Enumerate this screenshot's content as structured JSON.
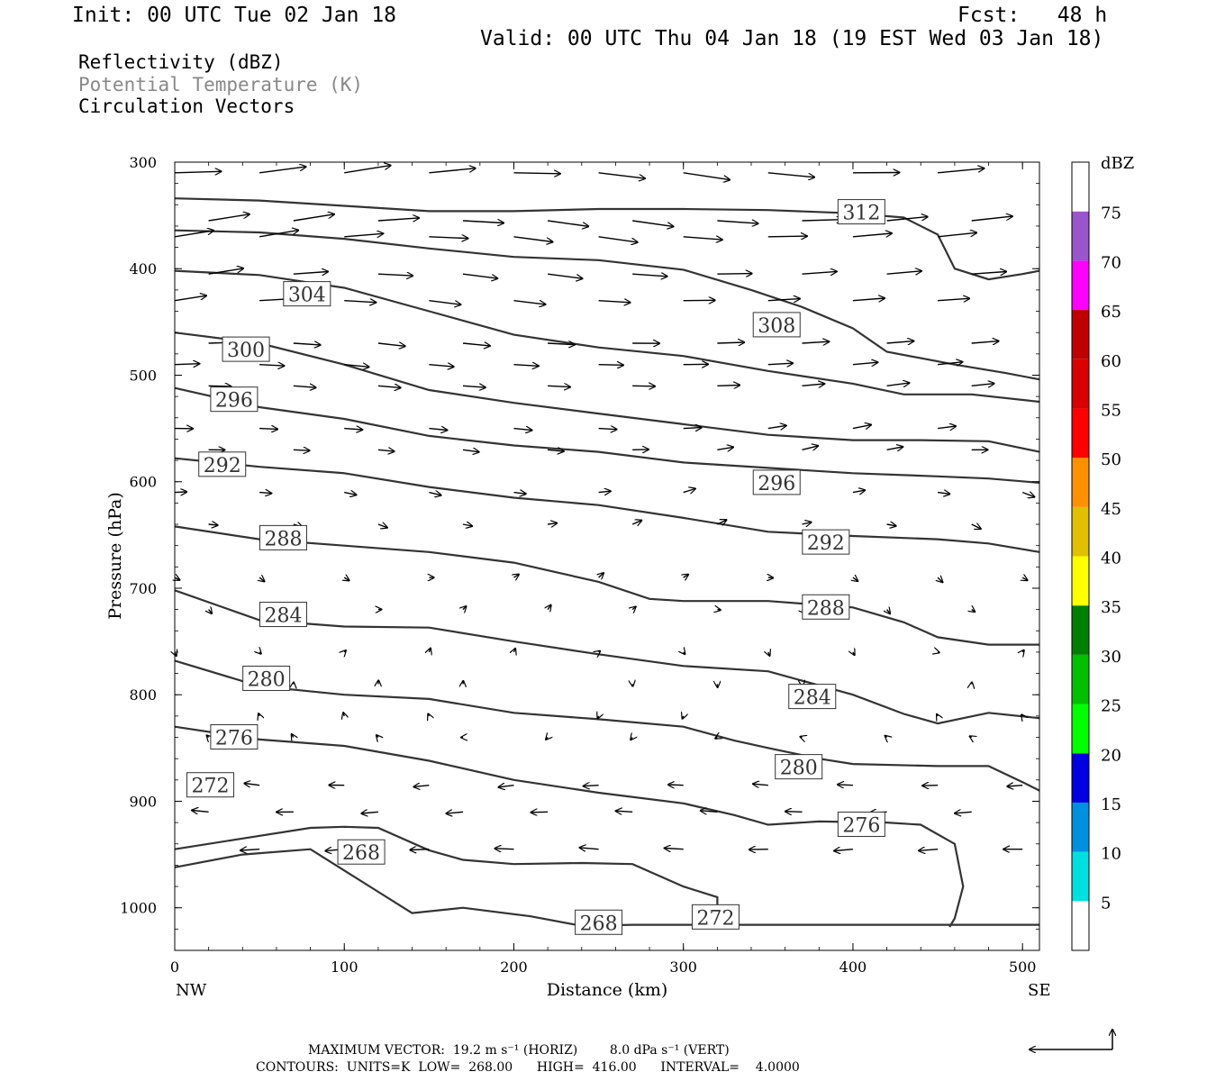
{
  "header": {
    "init": "Init: 00 UTC Tue 02 Jan 18",
    "fcst": "Fcst:   48 h",
    "valid": "Valid: 00 UTC Thu 04 Jan 18 (19 EST Wed 03 Jan 18)"
  },
  "legend": {
    "reflectivity": "Reflectivity (dBZ)",
    "theta": "Potential Temperature (K)",
    "vectors": "Circulation Vectors",
    "theta_color": "#888888"
  },
  "footer": {
    "max_vector": "MAXIMUM VECTOR:  19.2 m s⁻¹ (HORIZ)        8.0 dPa s⁻¹ (VERT)",
    "contours": "CONTOURS:  UNITS=K  LOW=  268.00      HIGH=  416.00      INTERVAL=    4.0000"
  },
  "chart_data": {
    "type": "contour",
    "xlabel": "Distance (km)",
    "ylabel": "Pressure (hPa)",
    "xlim": [
      0,
      510
    ],
    "ylim": [
      1040,
      300
    ],
    "x_ticks": [
      0,
      100,
      200,
      300,
      400,
      500
    ],
    "y_ticks": [
      300,
      400,
      500,
      600,
      700,
      800,
      900,
      1000
    ],
    "x_end_labels": {
      "left": "NW",
      "right": "SE"
    },
    "colorbar": {
      "title": "dBZ",
      "levels": [
        5,
        10,
        15,
        20,
        25,
        30,
        35,
        40,
        45,
        50,
        55,
        60,
        65,
        70,
        75
      ],
      "colors": [
        "#ffffff",
        "#00e0e0",
        "#0090e0",
        "#0000e0",
        "#00ff00",
        "#00c000",
        "#008000",
        "#ffff00",
        "#e0c000",
        "#ff9000",
        "#ff0000",
        "#d80000",
        "#c00000",
        "#ff00ff",
        "#9955cc",
        "#ffffff"
      ]
    },
    "theta_contours": [
      {
        "value": 312,
        "points": [
          [
            0,
            334
          ],
          [
            50,
            336
          ],
          [
            100,
            341
          ],
          [
            150,
            346
          ],
          [
            200,
            346
          ],
          [
            250,
            344
          ],
          [
            300,
            344
          ],
          [
            350,
            345
          ],
          [
            400,
            348
          ],
          [
            430,
            352
          ],
          [
            450,
            368
          ],
          [
            460,
            400
          ],
          [
            480,
            410
          ],
          [
            500,
            405
          ],
          [
            510,
            402
          ]
        ],
        "label_at": [
          405,
          347
        ]
      },
      {
        "value": 308,
        "points": [
          [
            0,
            364
          ],
          [
            50,
            366
          ],
          [
            100,
            372
          ],
          [
            150,
            381
          ],
          [
            200,
            389
          ],
          [
            250,
            392
          ],
          [
            300,
            401
          ],
          [
            340,
            420
          ],
          [
            370,
            436
          ],
          [
            400,
            456
          ],
          [
            420,
            478
          ],
          [
            460,
            490
          ],
          [
            490,
            498
          ],
          [
            510,
            504
          ]
        ],
        "label_at": [
          355,
          453
        ]
      },
      {
        "value": 304,
        "points": [
          [
            0,
            402
          ],
          [
            50,
            406
          ],
          [
            100,
            418
          ],
          [
            150,
            440
          ],
          [
            200,
            462
          ],
          [
            250,
            474
          ],
          [
            300,
            482
          ],
          [
            350,
            496
          ],
          [
            400,
            508
          ],
          [
            430,
            518
          ],
          [
            470,
            518
          ],
          [
            510,
            525
          ]
        ],
        "label_at": [
          78,
          424
        ]
      },
      {
        "value": 300,
        "points": [
          [
            0,
            460
          ],
          [
            50,
            470
          ],
          [
            100,
            490
          ],
          [
            150,
            514
          ],
          [
            200,
            526
          ],
          [
            250,
            536
          ],
          [
            300,
            546
          ],
          [
            350,
            556
          ],
          [
            400,
            561
          ],
          [
            440,
            561
          ],
          [
            480,
            562
          ],
          [
            510,
            572
          ]
        ],
        "label_at": [
          42,
          476
        ]
      },
      {
        "value": 296,
        "points": [
          [
            0,
            512
          ],
          [
            50,
            530
          ],
          [
            100,
            541
          ],
          [
            150,
            557
          ],
          [
            200,
            566
          ],
          [
            250,
            572
          ],
          [
            300,
            582
          ],
          [
            350,
            587
          ],
          [
            400,
            592
          ],
          [
            450,
            595
          ],
          [
            480,
            597
          ],
          [
            510,
            601
          ]
        ],
        "label_at": [
          35,
          523
        ]
      },
      {
        "value": 292,
        "points": [
          [
            0,
            578
          ],
          [
            50,
            586
          ],
          [
            100,
            592
          ],
          [
            150,
            605
          ],
          [
            200,
            615
          ],
          [
            250,
            622
          ],
          [
            300,
            634
          ],
          [
            350,
            647
          ],
          [
            400,
            651
          ],
          [
            450,
            654
          ],
          [
            480,
            658
          ],
          [
            510,
            666
          ]
        ],
        "label_at": [
          28,
          584
        ]
      },
      {
        "value": 288,
        "points": [
          [
            0,
            642
          ],
          [
            50,
            654
          ],
          [
            100,
            660
          ],
          [
            150,
            666
          ],
          [
            200,
            676
          ],
          [
            250,
            694
          ],
          [
            280,
            710
          ],
          [
            300,
            712
          ],
          [
            350,
            712
          ],
          [
            400,
            718
          ],
          [
            430,
            732
          ],
          [
            450,
            746
          ],
          [
            480,
            753
          ],
          [
            510,
            753
          ]
        ],
        "label_at": [
          64,
          653
        ]
      },
      {
        "value": 284,
        "points": [
          [
            0,
            702
          ],
          [
            50,
            730
          ],
          [
            100,
            736
          ],
          [
            150,
            737
          ],
          [
            200,
            750
          ],
          [
            250,
            762
          ],
          [
            300,
            773
          ],
          [
            350,
            778
          ],
          [
            400,
            800
          ],
          [
            430,
            818
          ],
          [
            450,
            827
          ],
          [
            480,
            817
          ],
          [
            510,
            822
          ]
        ],
        "label_at": [
          64,
          725
        ]
      },
      {
        "value": 280,
        "points": [
          [
            0,
            768
          ],
          [
            50,
            792
          ],
          [
            100,
            800
          ],
          [
            150,
            804
          ],
          [
            200,
            817
          ],
          [
            250,
            823
          ],
          [
            300,
            830
          ],
          [
            330,
            843
          ],
          [
            350,
            850
          ],
          [
            380,
            860
          ],
          [
            400,
            865
          ],
          [
            450,
            867
          ],
          [
            480,
            867
          ],
          [
            500,
            882
          ],
          [
            510,
            890
          ]
        ],
        "label_at": [
          54,
          785
        ]
      },
      {
        "value": 276,
        "points": [
          [
            0,
            830
          ],
          [
            50,
            842
          ],
          [
            100,
            848
          ],
          [
            150,
            862
          ],
          [
            200,
            880
          ],
          [
            250,
            892
          ],
          [
            300,
            902
          ],
          [
            330,
            913
          ],
          [
            350,
            922
          ],
          [
            380,
            919
          ],
          [
            420,
            920
          ],
          [
            440,
            922
          ],
          [
            460,
            940
          ],
          [
            465,
            980
          ],
          [
            460,
            1010
          ],
          [
            457,
            1018
          ]
        ],
        "label_at": [
          35,
          840
        ]
      },
      {
        "value": 272,
        "points": [
          [
            0,
            945
          ],
          [
            40,
            935
          ],
          [
            80,
            925
          ],
          [
            100,
            924
          ],
          [
            120,
            925
          ],
          [
            150,
            946
          ],
          [
            170,
            955
          ],
          [
            200,
            959
          ],
          [
            240,
            958
          ],
          [
            270,
            959
          ],
          [
            300,
            980
          ],
          [
            320,
            990
          ],
          [
            320,
            1010
          ]
        ],
        "label_at": [
          21,
          885
        ]
      },
      {
        "value": 268,
        "points": [
          [
            0,
            962
          ],
          [
            40,
            950
          ],
          [
            80,
            945
          ],
          [
            120,
            985
          ],
          [
            140,
            1005
          ],
          [
            170,
            1000
          ],
          [
            210,
            1008
          ],
          [
            240,
            1017
          ],
          [
            270,
            1016
          ],
          [
            300,
            1016
          ],
          [
            350,
            1016
          ],
          [
            400,
            1016
          ],
          [
            450,
            1016
          ],
          [
            510,
            1016
          ]
        ],
        "label_at": [
          110,
          948
        ]
      }
    ],
    "theta_labels_extra": [
      {
        "value": 296,
        "at": [
          355,
          601
        ]
      },
      {
        "value": 292,
        "at": [
          384,
          657
        ]
      },
      {
        "value": 288,
        "at": [
          384,
          718
        ]
      },
      {
        "value": 284,
        "at": [
          376,
          802
        ]
      },
      {
        "value": 280,
        "at": [
          368,
          868
        ]
      },
      {
        "value": 276,
        "at": [
          405,
          922
        ]
      },
      {
        "value": 272,
        "at": [
          319,
          1009
        ]
      },
      {
        "value": 268,
        "at": [
          250,
          1014
        ]
      }
    ]
  }
}
